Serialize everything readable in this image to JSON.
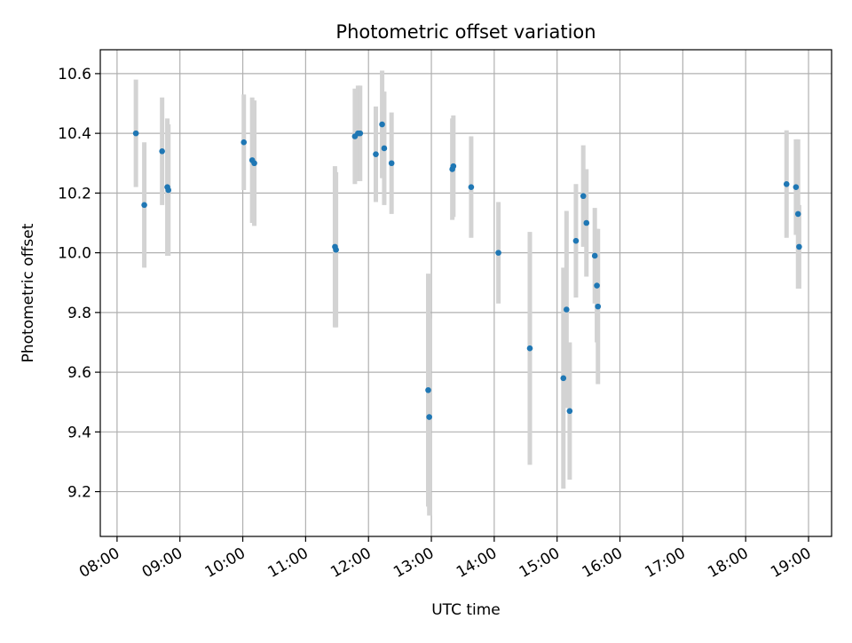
{
  "chart_data": {
    "type": "scatter",
    "title": "Photometric offset variation",
    "xlabel": "UTC time",
    "ylabel": "Photometric offset",
    "grid": true,
    "legend": "none",
    "colors": {
      "point": "#1f77b4",
      "errorbar": "#d3d3d3",
      "grid": "#b0b0b0"
    },
    "xlim": [
      "07:44",
      "19:22"
    ],
    "ylim": [
      9.05,
      10.68
    ],
    "x_ticks": [
      "08:00",
      "09:00",
      "10:00",
      "11:00",
      "12:00",
      "13:00",
      "14:00",
      "15:00",
      "16:00",
      "17:00",
      "18:00",
      "19:00"
    ],
    "y_ticks": [
      "9.2",
      "9.4",
      "9.6",
      "9.8",
      "10.0",
      "10.2",
      "10.4",
      "10.6"
    ],
    "series": [
      {
        "points": [
          {
            "x": "08:18",
            "y": 10.4,
            "err": 0.18
          },
          {
            "x": "08:26",
            "y": 10.16,
            "err": 0.21
          },
          {
            "x": "08:43",
            "y": 10.34,
            "err": 0.18
          },
          {
            "x": "08:48",
            "y": 10.22,
            "err": 0.23
          },
          {
            "x": "08:49",
            "y": 10.21,
            "err": 0.22
          },
          {
            "x": "10:01",
            "y": 10.37,
            "err": 0.16
          },
          {
            "x": "10:09",
            "y": 10.31,
            "err": 0.21
          },
          {
            "x": "10:11",
            "y": 10.3,
            "err": 0.21
          },
          {
            "x": "11:28",
            "y": 10.02,
            "err": 0.27
          },
          {
            "x": "11:29",
            "y": 10.01,
            "err": 0.26
          },
          {
            "x": "11:47",
            "y": 10.39,
            "err": 0.16
          },
          {
            "x": "11:50",
            "y": 10.4,
            "err": 0.16
          },
          {
            "x": "11:52",
            "y": 10.4,
            "err": 0.16
          },
          {
            "x": "12:07",
            "y": 10.33,
            "err": 0.16
          },
          {
            "x": "12:13",
            "y": 10.43,
            "err": 0.18
          },
          {
            "x": "12:15",
            "y": 10.35,
            "err": 0.19
          },
          {
            "x": "12:22",
            "y": 10.3,
            "err": 0.17
          },
          {
            "x": "12:57",
            "y": 9.54,
            "err": 0.39
          },
          {
            "x": "12:58",
            "y": 9.45,
            "err": 0.33
          },
          {
            "x": "13:20",
            "y": 10.28,
            "err": 0.17
          },
          {
            "x": "13:21",
            "y": 10.29,
            "err": 0.17
          },
          {
            "x": "13:38",
            "y": 10.22,
            "err": 0.17
          },
          {
            "x": "14:04",
            "y": 10.0,
            "err": 0.17
          },
          {
            "x": "14:34",
            "y": 9.68,
            "err": 0.39
          },
          {
            "x": "15:06",
            "y": 9.58,
            "err": 0.37
          },
          {
            "x": "15:09",
            "y": 9.81,
            "err": 0.33
          },
          {
            "x": "15:12",
            "y": 9.47,
            "err": 0.23
          },
          {
            "x": "15:18",
            "y": 10.04,
            "err": 0.19
          },
          {
            "x": "15:25",
            "y": 10.19,
            "err": 0.17
          },
          {
            "x": "15:28",
            "y": 10.1,
            "err": 0.18
          },
          {
            "x": "15:36",
            "y": 9.99,
            "err": 0.16
          },
          {
            "x": "15:38",
            "y": 9.89,
            "err": 0.19
          },
          {
            "x": "15:39",
            "y": 9.82,
            "err": 0.26
          },
          {
            "x": "18:39",
            "y": 10.23,
            "err": 0.18
          },
          {
            "x": "18:48",
            "y": 10.22,
            "err": 0.16
          },
          {
            "x": "18:50",
            "y": 10.13,
            "err": 0.25
          },
          {
            "x": "18:51",
            "y": 10.02,
            "err": 0.14
          }
        ]
      }
    ]
  }
}
